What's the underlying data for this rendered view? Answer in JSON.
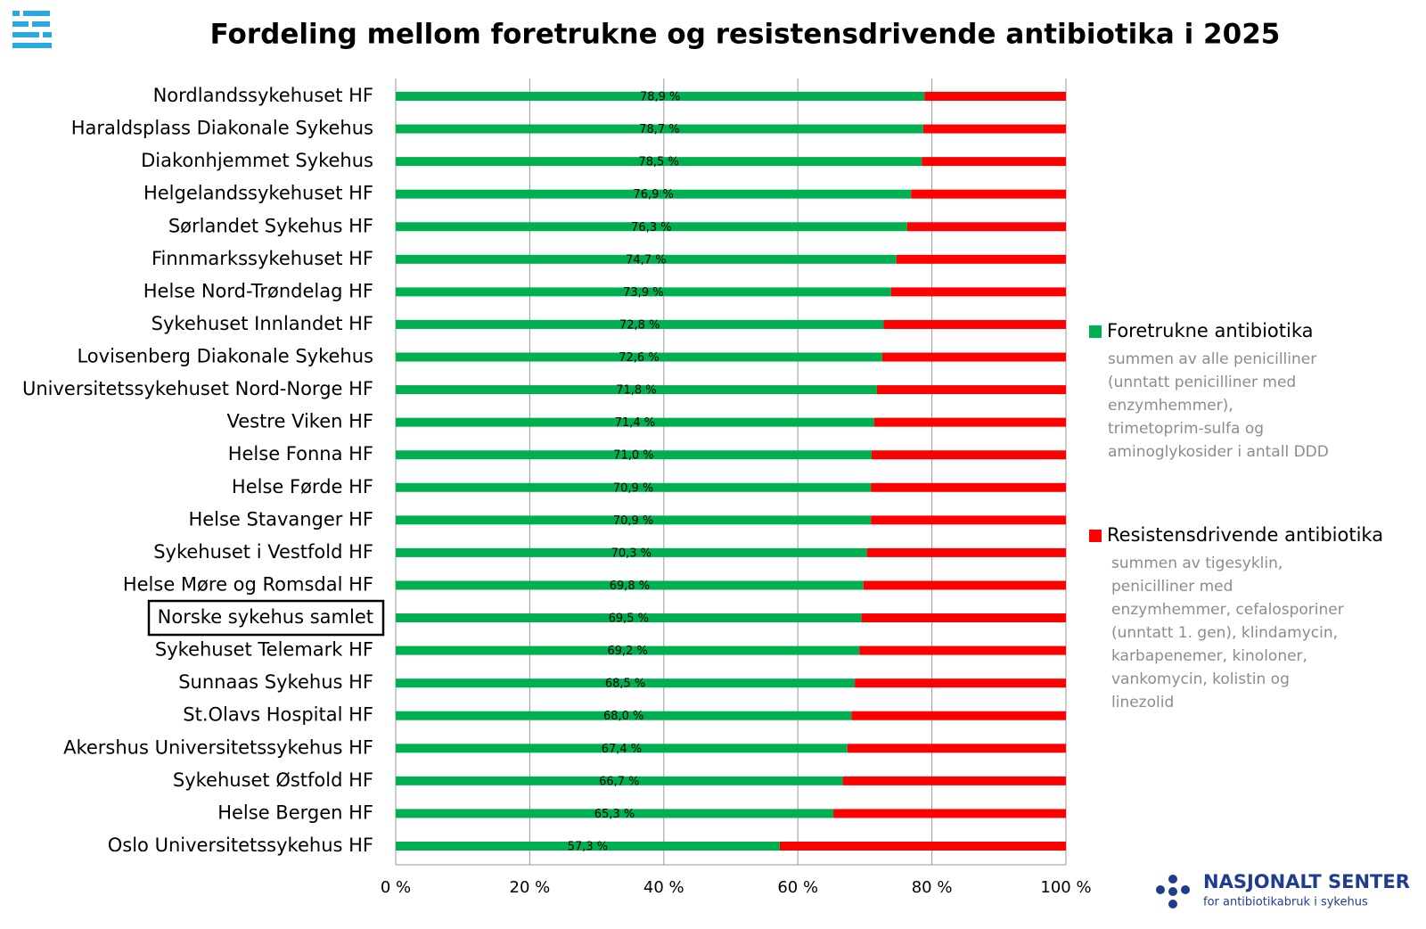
{
  "chart_data": {
    "type": "stacked-barh",
    "title": "Fordeling mellom foretrukne og resistensdrivende antibiotika i 2025",
    "categories": [
      "Nordlandssykehuset HF",
      "Haraldsplass Diakonale Sykehus",
      "Diakonhjemmet Sykehus",
      "Helgelandssykehuset HF",
      "Sørlandet Sykehus HF",
      "Finnmarkssykehuset HF",
      "Helse Nord-Trøndelag HF",
      "Sykehuset Innlandet HF",
      "Lovisenberg Diakonale Sykehus",
      "Universitetssykehuset Nord-Norge HF",
      "Vestre Viken HF",
      "Helse Fonna HF",
      "Helse Førde HF",
      "Helse Stavanger HF",
      "Sykehuset i Vestfold HF",
      "Helse Møre og Romsdal HF",
      "Norske sykehus samlet",
      "Sykehuset Telemark HF",
      "Sunnaas Sykehus HF",
      "St.Olavs Hospital HF",
      "Akershus Universitetssykehus HF",
      "Sykehuset Østfold HF",
      "Helse Bergen HF",
      "Oslo Universitetssykehus HF"
    ],
    "boxed_category_index": 16,
    "series": [
      {
        "name": "Foretrukne antibiotika",
        "color": "#00b050",
        "note_lines": [
          "summen av alle penicilliner",
          "(unntatt penicilliner med",
          "enzymhemmer),",
          "trimetoprim-sulfa og",
          "aminoglykosider i antall DDD"
        ],
        "values": [
          78.9,
          78.7,
          78.5,
          76.9,
          76.3,
          74.7,
          73.9,
          72.8,
          72.6,
          71.8,
          71.4,
          71.0,
          70.9,
          70.9,
          70.3,
          69.8,
          69.5,
          69.2,
          68.5,
          68.0,
          67.4,
          66.7,
          65.3,
          57.3
        ],
        "value_labels": [
          "78,9 %",
          "78,7 %",
          "78,5 %",
          "76,9 %",
          "76,3 %",
          "74,7 %",
          "73,9 %",
          "72,8 %",
          "72,6 %",
          "71,8 %",
          "71,4 %",
          "71,0 %",
          "70,9 %",
          "70,9 %",
          "70,3 %",
          "69,8 %",
          "69,5 %",
          "69,2 %",
          "68,5 %",
          "68,0 %",
          "67,4 %",
          "66,7 %",
          "65,3 %",
          "57,3 %"
        ]
      },
      {
        "name": "Resistensdrivende antibiotika",
        "color": "#ff0000",
        "note_lines": [
          "summen av tigesyklin,",
          "penicilliner med",
          "enzymhemmer, cefalosporiner",
          "(unntatt 1. gen), klindamycin,",
          "karbapenemer, kinoloner,",
          "vankomycin, kolistin og",
          "linezolid"
        ],
        "values": [
          21.1,
          21.3,
          21.5,
          23.1,
          23.7,
          25.3,
          26.1,
          27.2,
          27.4,
          28.2,
          28.6,
          29.0,
          29.1,
          29.1,
          29.7,
          30.2,
          30.5,
          30.8,
          31.5,
          32.0,
          32.6,
          33.3,
          34.7,
          42.7
        ]
      }
    ],
    "xlim": [
      0,
      100
    ],
    "xticks": [
      {
        "value": 0,
        "label": "0 %"
      },
      {
        "value": 20,
        "label": "20 %"
      },
      {
        "value": 40,
        "label": "40 %"
      },
      {
        "value": 60,
        "label": "60 %"
      },
      {
        "value": 80,
        "label": "80 %"
      },
      {
        "value": 100,
        "label": "100 %"
      }
    ],
    "grid": true
  },
  "logo": {
    "name": "NASJONALT SENTER",
    "tagline": "for antibiotikabruk i sykehus"
  }
}
